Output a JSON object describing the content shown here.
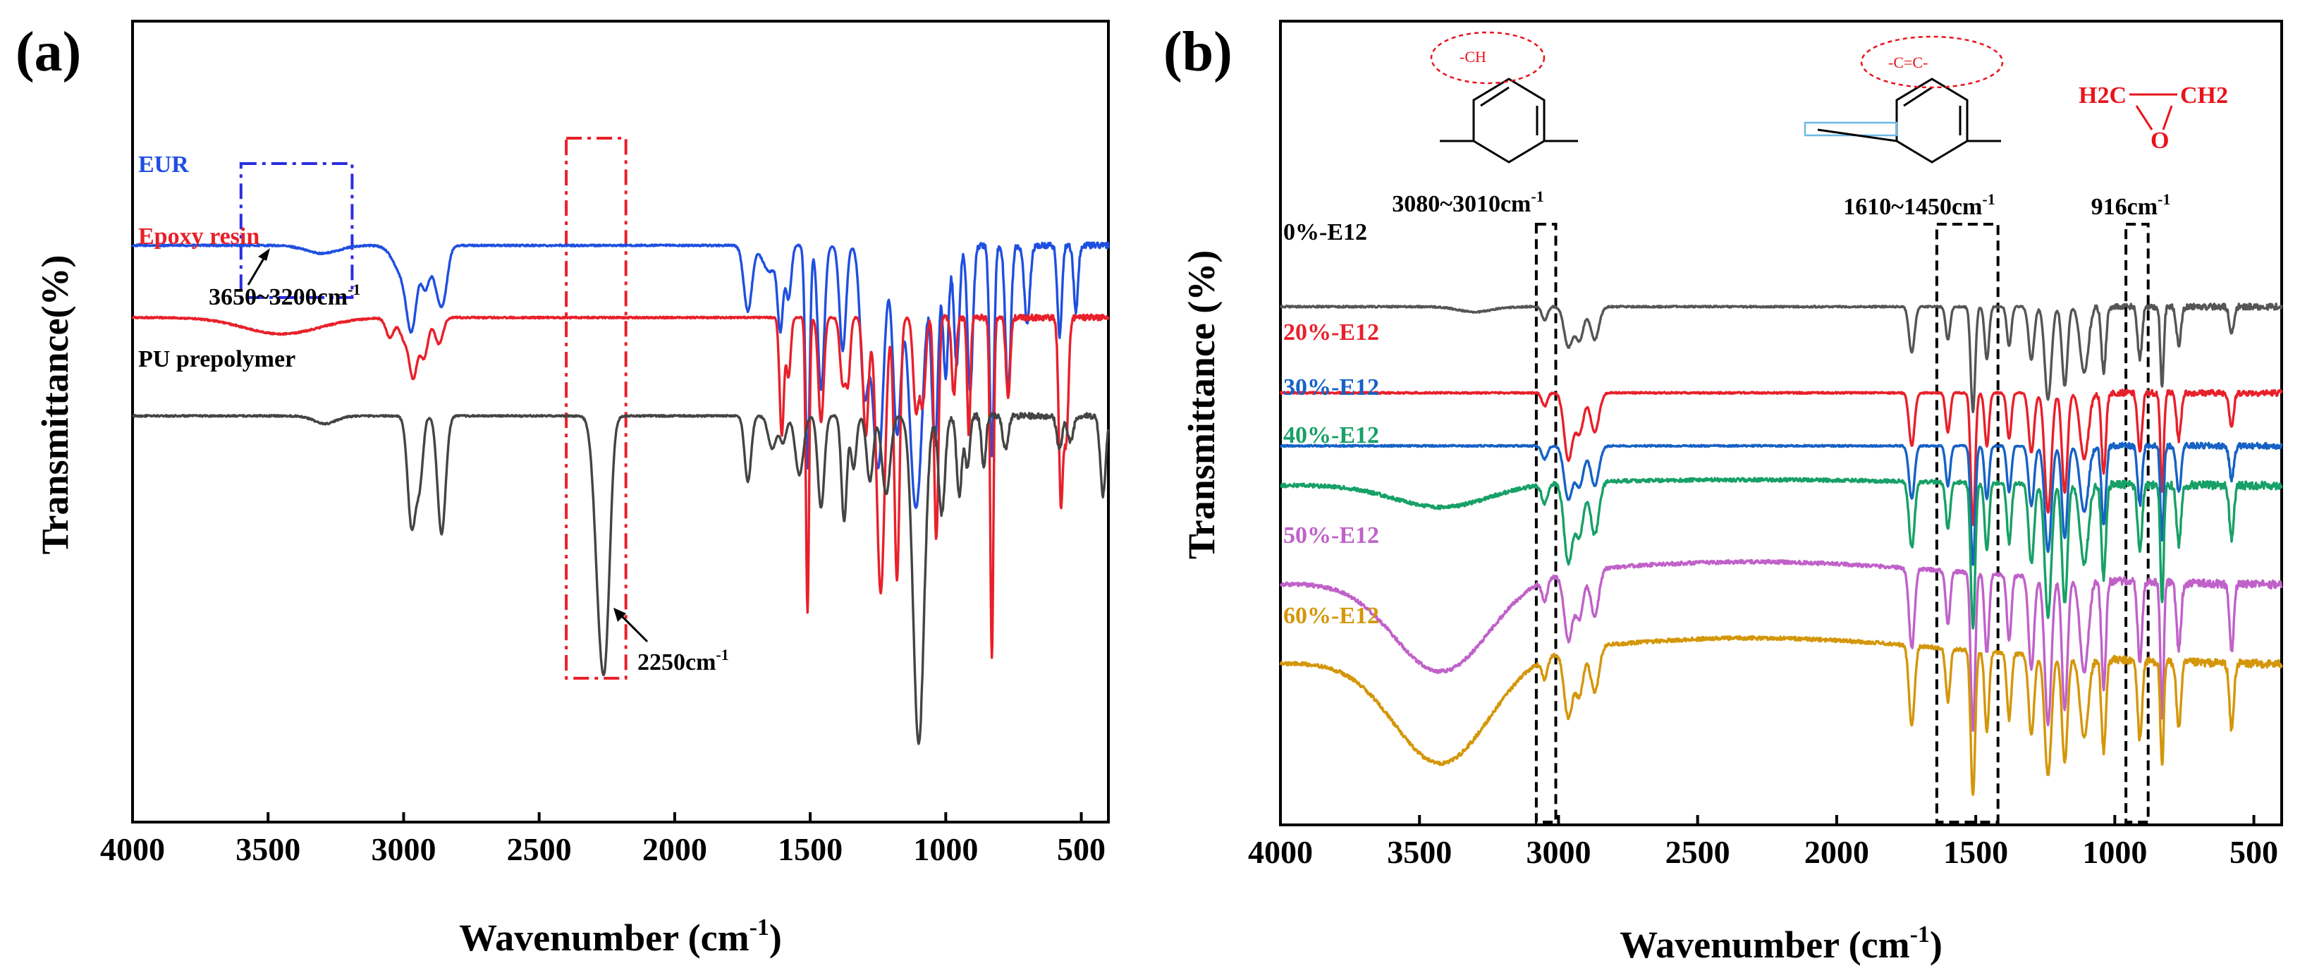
{
  "chart_data": [
    {
      "panel": "(a)",
      "type": "line",
      "xlabel": "Wavenumber (cm-1)",
      "ylabel": "Transmittance(%)",
      "xlim": [
        4000,
        400
      ],
      "x_reversed": true,
      "xticks": [
        4000,
        3500,
        3000,
        2500,
        2000,
        1500,
        1000,
        500
      ],
      "yticks": [],
      "y_units": "arbitrary, offset-stacked traces (0 = bottom, 100 = top)",
      "series": [
        {
          "name": "EUR",
          "label": "EUR",
          "color": "#1f4fe0",
          "baseline": 83,
          "noise_below": 1100,
          "features": [
            [
              3300,
              1.2,
              60
            ],
            [
              3000,
              4.5,
              35
            ],
            [
              2970,
              10,
              18
            ],
            [
              2920,
              6,
              15
            ],
            [
              2870,
              7,
              20
            ],
            [
              2850,
              4,
              15
            ],
            [
              1730,
              10,
              15
            ],
            [
              1650,
              4,
              25
            ],
            [
              1610,
              12,
              10
            ],
            [
              1580,
              8,
              10
            ],
            [
              1510,
              34,
              8
            ],
            [
              1460,
              22,
              12
            ],
            [
              1380,
              16,
              12
            ],
            [
              1300,
              22,
              15
            ],
            [
              1250,
              34,
              20
            ],
            [
              1180,
              28,
              15
            ],
            [
              1110,
              40,
              25
            ],
            [
              1040,
              30,
              12
            ],
            [
              1000,
              20,
              10
            ],
            [
              960,
              18,
              10
            ],
            [
              910,
              22,
              10
            ],
            [
              830,
              32,
              8
            ],
            [
              770,
              22,
              10
            ],
            [
              700,
              12,
              10
            ],
            [
              580,
              14,
              8
            ],
            [
              520,
              10,
              8
            ]
          ]
        },
        {
          "name": "Epoxy resin",
          "label": "Epoxy resin",
          "color": "#e8202a",
          "baseline": 72,
          "noise_below": 1100,
          "features": [
            [
              3450,
              2.5,
              140
            ],
            [
              3050,
              3,
              15
            ],
            [
              3000,
              3,
              15
            ],
            [
              2965,
              9,
              15
            ],
            [
              2925,
              6,
              15
            ],
            [
              2870,
              4,
              15
            ],
            [
              1605,
              18,
              8
            ],
            [
              1580,
              9,
              8
            ],
            [
              1510,
              45,
              6
            ],
            [
              1460,
              16,
              10
            ],
            [
              1380,
              10,
              10
            ],
            [
              1360,
              9,
              8
            ],
            [
              1295,
              18,
              10
            ],
            [
              1240,
              42,
              15
            ],
            [
              1180,
              40,
              10
            ],
            [
              1110,
              14,
              10
            ],
            [
              1085,
              13,
              10
            ],
            [
              1035,
              34,
              8
            ],
            [
              970,
              12,
              8
            ],
            [
              915,
              18,
              6
            ],
            [
              830,
              52,
              6
            ],
            [
              770,
              12,
              8
            ],
            [
              575,
              28,
              8
            ],
            [
              555,
              18,
              8
            ]
          ]
        },
        {
          "name": "PU prepolymer",
          "label": "PU prepolymer",
          "color": "#444444",
          "baseline": 57,
          "noise_below": 1100,
          "features": [
            [
              3290,
              1.2,
              40
            ],
            [
              2970,
              17,
              15
            ],
            [
              2940,
              9,
              12
            ],
            [
              2860,
              18,
              15
            ],
            [
              2270,
              33,
              22
            ],
            [
              2250,
              12,
              15
            ],
            [
              1730,
              10,
              12
            ],
            [
              1640,
              5,
              15
            ],
            [
              1600,
              4,
              12
            ],
            [
              1540,
              9,
              15
            ],
            [
              1460,
              14,
              12
            ],
            [
              1375,
              16,
              10
            ],
            [
              1340,
              8,
              10
            ],
            [
              1280,
              10,
              12
            ],
            [
              1220,
              12,
              15
            ],
            [
              1100,
              50,
              20
            ],
            [
              1015,
              15,
              12
            ],
            [
              950,
              12,
              10
            ],
            [
              920,
              8,
              8
            ],
            [
              860,
              8,
              8
            ],
            [
              780,
              5,
              10
            ],
            [
              580,
              5,
              10
            ],
            [
              540,
              4,
              10
            ],
            [
              420,
              12,
              10
            ]
          ]
        }
      ],
      "annotations": [
        {
          "text": "3650~3200cm-1",
          "box_x": [
            3600,
            3190
          ],
          "box_color": "#2a2ee0"
        },
        {
          "text": "2250cm-1",
          "box_x": [
            2400,
            2180
          ],
          "box_color": "#e8202a"
        }
      ]
    },
    {
      "panel": "(b)",
      "type": "line",
      "xlabel": "Wavenumber (cm-1)",
      "ylabel": "Transmittance (%)",
      "xlim": [
        4000,
        400
      ],
      "x_reversed": true,
      "xticks": [
        4000,
        3500,
        3000,
        2500,
        2000,
        1500,
        1000,
        500
      ],
      "yticks": [],
      "y_units": "arbitrary, offset-stacked traces (0 = bottom, 100 = top)",
      "series": [
        {
          "name": "0%-E12",
          "label": "0%-E12",
          "color": "#555555",
          "baseline": 75,
          "broad_oh": 0,
          "features": [
            [
              3300,
              0.8,
              60
            ],
            [
              3050,
              2,
              10
            ],
            [
              2965,
              6,
              15
            ],
            [
              2925,
              5,
              15
            ],
            [
              2870,
              5,
              15
            ],
            [
              1730,
              7,
              10
            ],
            [
              1600,
              5,
              8
            ],
            [
              1510,
              16,
              8
            ],
            [
              1460,
              8,
              8
            ],
            [
              1380,
              6,
              8
            ],
            [
              1300,
              8,
              10
            ],
            [
              1240,
              14,
              12
            ],
            [
              1180,
              12,
              10
            ],
            [
              1110,
              10,
              15
            ],
            [
              1040,
              10,
              8
            ],
            [
              910,
              8,
              8
            ],
            [
              830,
              12,
              6
            ],
            [
              770,
              6,
              8
            ],
            [
              580,
              4,
              8
            ]
          ]
        },
        {
          "name": "20%-E12",
          "label": "20%-E12",
          "color": "#e8202a",
          "baseline": 62,
          "broad_oh": 0,
          "features": [
            [
              3050,
              2,
              10
            ],
            [
              2965,
              10,
              15
            ],
            [
              2925,
              6,
              15
            ],
            [
              2870,
              6,
              15
            ],
            [
              1730,
              8,
              10
            ],
            [
              1600,
              6,
              8
            ],
            [
              1510,
              20,
              8
            ],
            [
              1460,
              8,
              8
            ],
            [
              1380,
              7,
              8
            ],
            [
              1300,
              9,
              10
            ],
            [
              1240,
              18,
              12
            ],
            [
              1180,
              15,
              10
            ],
            [
              1110,
              10,
              15
            ],
            [
              1040,
              12,
              8
            ],
            [
              910,
              9,
              8
            ],
            [
              830,
              15,
              6
            ],
            [
              770,
              7,
              8
            ],
            [
              580,
              5,
              8
            ]
          ]
        },
        {
          "name": "30%-E12",
          "label": "30%-E12",
          "color": "#1662c4",
          "baseline": 54,
          "broad_oh": 0,
          "features": [
            [
              3050,
              2,
              10
            ],
            [
              2965,
              8,
              15
            ],
            [
              2925,
              6,
              15
            ],
            [
              2870,
              6,
              15
            ],
            [
              1730,
              8,
              10
            ],
            [
              1600,
              6,
              8
            ],
            [
              1510,
              18,
              8
            ],
            [
              1460,
              8,
              8
            ],
            [
              1380,
              7,
              8
            ],
            [
              1300,
              9,
              10
            ],
            [
              1240,
              16,
              12
            ],
            [
              1180,
              14,
              10
            ],
            [
              1110,
              10,
              15
            ],
            [
              1040,
              12,
              8
            ],
            [
              910,
              9,
              8
            ],
            [
              830,
              14,
              6
            ],
            [
              770,
              7,
              8
            ],
            [
              580,
              5,
              8
            ]
          ]
        },
        {
          "name": "40%-E12",
          "label": "40%-E12",
          "color": "#17a067",
          "baseline": 48,
          "broad_oh": 3.5,
          "features": [
            [
              3050,
              3,
              10
            ],
            [
              2965,
              12,
              15
            ],
            [
              2925,
              8,
              15
            ],
            [
              2870,
              8,
              15
            ],
            [
              1730,
              10,
              10
            ],
            [
              1600,
              7,
              8
            ],
            [
              1510,
              22,
              8
            ],
            [
              1460,
              10,
              8
            ],
            [
              1380,
              9,
              8
            ],
            [
              1300,
              12,
              10
            ],
            [
              1240,
              20,
              12
            ],
            [
              1180,
              18,
              10
            ],
            [
              1110,
              12,
              15
            ],
            [
              1040,
              14,
              8
            ],
            [
              910,
              10,
              8
            ],
            [
              830,
              18,
              6
            ],
            [
              770,
              9,
              8
            ],
            [
              580,
              8,
              8
            ]
          ]
        },
        {
          "name": "50%-E12",
          "label": "50%-E12",
          "color": "#c061c9",
          "baseline": 33,
          "broad_oh": 14,
          "features": [
            [
              3050,
              3,
              10
            ],
            [
              2965,
              10,
              15
            ],
            [
              2925,
              7,
              15
            ],
            [
              2870,
              7,
              15
            ],
            [
              1730,
              12,
              10
            ],
            [
              1600,
              8,
              8
            ],
            [
              1510,
              24,
              8
            ],
            [
              1460,
              12,
              8
            ],
            [
              1380,
              10,
              8
            ],
            [
              1300,
              14,
              10
            ],
            [
              1240,
              22,
              12
            ],
            [
              1180,
              20,
              10
            ],
            [
              1110,
              14,
              15
            ],
            [
              1040,
              16,
              8
            ],
            [
              910,
              12,
              8
            ],
            [
              830,
              20,
              6
            ],
            [
              770,
              10,
              8
            ],
            [
              580,
              10,
              8
            ]
          ]
        },
        {
          "name": "60%-E12",
          "label": "60%-E12",
          "color": "#d4960a",
          "baseline": 21,
          "broad_oh": 16,
          "features": [
            [
              3050,
              3,
              10
            ],
            [
              2965,
              10,
              15
            ],
            [
              2925,
              7,
              15
            ],
            [
              2870,
              7,
              15
            ],
            [
              1730,
              12,
              10
            ],
            [
              1600,
              8,
              8
            ],
            [
              1510,
              22,
              8
            ],
            [
              1460,
              12,
              8
            ],
            [
              1380,
              10,
              8
            ],
            [
              1300,
              12,
              10
            ],
            [
              1240,
              18,
              12
            ],
            [
              1180,
              16,
              10
            ],
            [
              1110,
              12,
              15
            ],
            [
              1040,
              14,
              8
            ],
            [
              910,
              12,
              8
            ],
            [
              830,
              16,
              6
            ],
            [
              770,
              10,
              8
            ],
            [
              580,
              10,
              8
            ]
          ]
        }
      ],
      "annotations": [
        {
          "text": "3080~3010cm-1",
          "box_x": [
            3080,
            3010
          ]
        },
        {
          "text": "1610~1450cm-1",
          "box_x": [
            1640,
            1420
          ]
        },
        {
          "text": "916cm-1",
          "box_x": [
            960,
            880
          ]
        }
      ],
      "structures": {
        "ring_1_group": "-CH",
        "ring_2_group": "-C=C-",
        "epoxide_left": "H2C",
        "epoxide_right": "CH2",
        "epoxide_o": "O"
      }
    }
  ],
  "text": {
    "panel_a": "(a)",
    "panel_b": "(b)",
    "xlabel_main": "Wavenumber (cm",
    "xlabel_sup": "-1",
    "xlabel_close": ")",
    "ylabel_a": "Transmittance(%)",
    "ylabel_b": "Transmittance (%)",
    "annot_a1_main": "3650~3200cm",
    "annot_a2_main": "2250cm",
    "annot_b1_main": "3080~3010cm",
    "annot_b2_main": "1610~1450cm",
    "annot_b3_main": "916cm",
    "sup": "-1"
  }
}
